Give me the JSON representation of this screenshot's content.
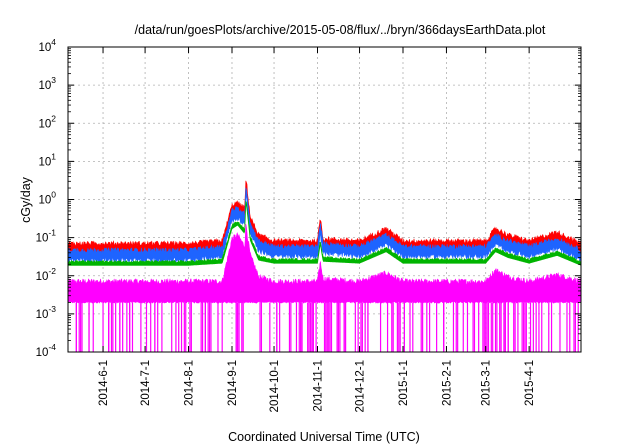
{
  "chart_data": {
    "type": "line",
    "title": "/data/run/goesPlots/archive/2015-05-08/flux/../bryn/366daysEarthData.plot",
    "xlabel": "Coordinated Universal Time (UTC)",
    "ylabel": "cGy/day",
    "yscale": "log",
    "ylim": [
      0.0001,
      10000
    ],
    "xlim": [
      "2014-05-07",
      "2015-05-08"
    ],
    "grid": true,
    "legend": "none",
    "x_ticks": [
      "2014-6-1",
      "2014-7-1",
      "2014-8-1",
      "2014-9-1",
      "2014-10-1",
      "2014-11-1",
      "2014-12-1",
      "2015-1-1",
      "2015-2-1",
      "2015-3-1",
      "2015-4-1"
    ],
    "y_ticks": [
      {
        "base": "10",
        "exp": "-4",
        "value": 0.0001
      },
      {
        "base": "10",
        "exp": "-3",
        "value": 0.001
      },
      {
        "base": "10",
        "exp": "-2",
        "value": 0.01
      },
      {
        "base": "10",
        "exp": "-1",
        "value": 0.1
      },
      {
        "base": "10",
        "exp": "0",
        "value": 1
      },
      {
        "base": "10",
        "exp": "1",
        "value": 10
      },
      {
        "base": "10",
        "exp": "2",
        "value": 100
      },
      {
        "base": "10",
        "exp": "3",
        "value": 1000
      },
      {
        "base": "10",
        "exp": "4",
        "value": 10000
      }
    ],
    "series": [
      {
        "color": "#ff0000",
        "x": [
          "2014-05-07",
          "2014-06-01",
          "2014-07-01",
          "2014-08-01",
          "2014-08-25",
          "2014-09-01",
          "2014-09-05",
          "2014-09-10",
          "2014-09-11",
          "2014-09-12",
          "2014-09-14",
          "2014-09-20",
          "2014-10-01",
          "2014-11-01",
          "2014-11-03",
          "2014-11-05",
          "2014-12-01",
          "2014-12-20",
          "2015-01-01",
          "2015-02-01",
          "2015-03-01",
          "2015-03-08",
          "2015-03-17",
          "2015-04-01",
          "2015-04-21",
          "2015-05-08"
        ],
        "values": [
          0.06,
          0.06,
          0.06,
          0.06,
          0.07,
          0.6,
          0.7,
          0.5,
          3.2,
          1.5,
          0.3,
          0.1,
          0.07,
          0.07,
          0.3,
          0.08,
          0.07,
          0.15,
          0.07,
          0.07,
          0.07,
          0.15,
          0.1,
          0.07,
          0.12,
          0.06
        ]
      },
      {
        "color": "#1e64ff",
        "x": [
          "2014-05-07",
          "2014-06-01",
          "2014-07-01",
          "2014-08-01",
          "2014-08-25",
          "2014-09-01",
          "2014-09-05",
          "2014-09-10",
          "2014-09-11",
          "2014-09-12",
          "2014-09-14",
          "2014-09-20",
          "2014-10-01",
          "2014-11-01",
          "2014-11-03",
          "2014-11-05",
          "2014-12-01",
          "2014-12-20",
          "2015-01-01",
          "2015-02-01",
          "2015-03-01",
          "2015-03-08",
          "2015-03-17",
          "2015-04-01",
          "2015-04-21",
          "2015-05-08"
        ],
        "values": [
          0.04,
          0.04,
          0.04,
          0.04,
          0.05,
          0.45,
          0.5,
          0.35,
          2.2,
          1.0,
          0.2,
          0.07,
          0.05,
          0.05,
          0.2,
          0.06,
          0.05,
          0.1,
          0.05,
          0.05,
          0.05,
          0.1,
          0.07,
          0.05,
          0.08,
          0.04
        ]
      },
      {
        "color": "#00b400",
        "x": [
          "2014-05-07",
          "2014-06-01",
          "2014-07-01",
          "2014-08-01",
          "2014-08-25",
          "2014-09-01",
          "2014-09-05",
          "2014-09-10",
          "2014-09-11",
          "2014-09-12",
          "2014-09-14",
          "2014-09-20",
          "2014-10-01",
          "2014-11-01",
          "2014-11-03",
          "2014-11-05",
          "2014-12-01",
          "2014-12-20",
          "2015-01-01",
          "2015-02-01",
          "2015-03-01",
          "2015-03-08",
          "2015-03-17",
          "2015-04-01",
          "2015-04-21",
          "2015-05-08"
        ],
        "values": [
          0.022,
          0.022,
          0.022,
          0.022,
          0.025,
          0.2,
          0.25,
          0.15,
          1.0,
          0.5,
          0.1,
          0.03,
          0.025,
          0.025,
          0.08,
          0.028,
          0.025,
          0.05,
          0.025,
          0.025,
          0.025,
          0.05,
          0.035,
          0.025,
          0.04,
          0.022
        ]
      },
      {
        "color": "#ff00ff",
        "x": [
          "2014-05-07",
          "2014-06-01",
          "2014-07-01",
          "2014-08-01",
          "2014-08-25",
          "2014-09-01",
          "2014-09-05",
          "2014-09-10",
          "2014-09-11",
          "2014-09-12",
          "2014-09-14",
          "2014-09-20",
          "2014-10-01",
          "2014-11-01",
          "2014-11-03",
          "2014-11-05",
          "2014-12-01",
          "2014-12-20",
          "2015-01-01",
          "2015-02-01",
          "2015-03-01",
          "2015-03-08",
          "2015-03-17",
          "2015-04-01",
          "2015-04-21",
          "2015-05-08"
        ],
        "values": [
          0.006,
          0.006,
          0.006,
          0.006,
          0.006,
          0.08,
          0.1,
          0.05,
          0.2,
          0.1,
          0.03,
          0.008,
          0.006,
          0.006,
          0.02,
          0.007,
          0.006,
          0.01,
          0.006,
          0.006,
          0.006,
          0.012,
          0.008,
          0.006,
          0.009,
          0.006
        ],
        "band_low": 0.002,
        "dropout_floor": 0.0001
      }
    ]
  }
}
